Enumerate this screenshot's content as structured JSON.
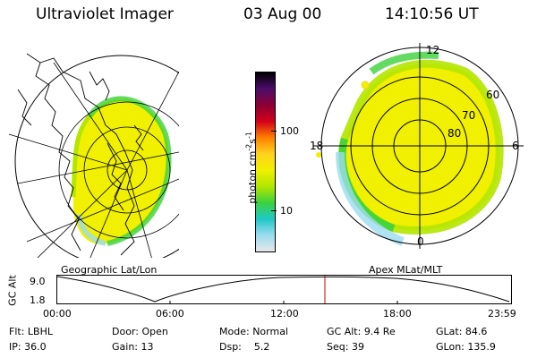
{
  "header": {
    "instrument": "Ultraviolet Imager",
    "date": "03 Aug 00",
    "time": "14:10:56 UT"
  },
  "left_panel": {
    "label": "Geographic Lat/Lon"
  },
  "colorbar": {
    "label": "photon cm",
    "label_exp1": "-2",
    "label_mid": "s",
    "label_exp2": "-1",
    "ticks": [
      "100",
      "10"
    ],
    "colors": [
      "#000000",
      "#4b0d6b",
      "#8b0036",
      "#d2001a",
      "#ff7f00",
      "#ffd21e",
      "#f0f000",
      "#b4e600",
      "#3cd23c",
      "#1ec8c8",
      "#9bdcf0",
      "#e6e6e6"
    ]
  },
  "right_panel": {
    "label": "Apex MLat/MLT",
    "mlt_labels": [
      "12",
      "18",
      "6",
      "0"
    ],
    "mlat_labels": [
      "60",
      "70",
      "80"
    ]
  },
  "altitude_plot": {
    "ylabel": "GC Alt",
    "y_ticks": [
      "9.0",
      "1.8"
    ],
    "x_ticks": [
      "00:00",
      "06:00",
      "12:00",
      "18:00",
      "23:59"
    ],
    "marker_time": "14:10:56",
    "marker_color": "#cc0000"
  },
  "info": {
    "row1": [
      {
        "label": "Flt:",
        "value": "LBHL"
      },
      {
        "label": "Door:",
        "value": "Open"
      },
      {
        "label": "Mode:",
        "value": "Normal"
      },
      {
        "label": "GC Alt:",
        "value": "9.4 Re"
      },
      {
        "label": "GLat:",
        "value": "84.6"
      }
    ],
    "row2": [
      {
        "label": "IP:",
        "value": "36.0"
      },
      {
        "label": "Gain:",
        "value": "13"
      },
      {
        "label": "Dsp:",
        "value": "5.2"
      },
      {
        "label": "Seq:",
        "value": "39"
      },
      {
        "label": "GLon:",
        "value": "135.9"
      }
    ]
  }
}
